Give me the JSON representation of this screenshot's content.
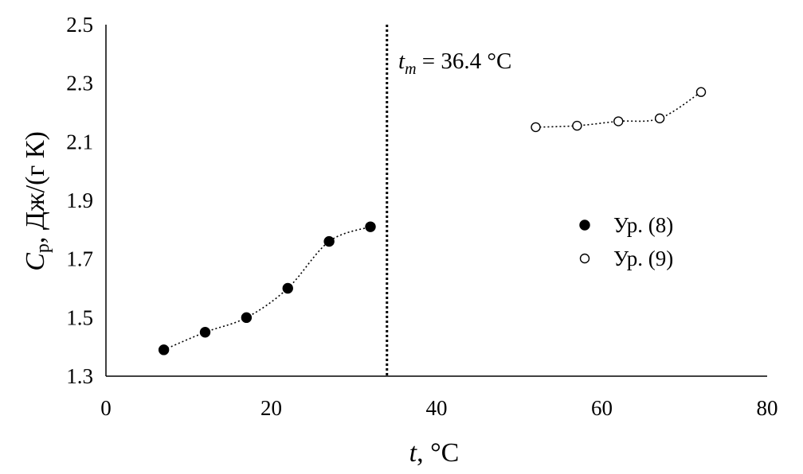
{
  "chart_data": {
    "type": "scatter",
    "title": "",
    "xlabel": {
      "var": "t",
      "rest": ", °C"
    },
    "ylabel": {
      "var": "C",
      "sub": "p",
      "rest": ", Дж/(г К)"
    },
    "xlim": [
      0,
      80
    ],
    "ylim": [
      1.3,
      2.5
    ],
    "x_ticks": [
      "0",
      "20",
      "40",
      "60",
      "80"
    ],
    "y_ticks": [
      "1.3",
      "1.5",
      "1.7",
      "1.9",
      "2.1",
      "2.3",
      "2.5"
    ],
    "grid": false,
    "legend_position": "center-right",
    "series": [
      {
        "name": "Ур. (8)",
        "marker": "filled-circle",
        "x": [
          7,
          12,
          17,
          22,
          27,
          32
        ],
        "y": [
          1.39,
          1.45,
          1.5,
          1.6,
          1.76,
          1.81
        ],
        "trend": "dotted"
      },
      {
        "name": "Ур. (9)",
        "marker": "open-circle",
        "x": [
          52,
          57,
          62,
          67,
          72
        ],
        "y": [
          2.15,
          2.155,
          2.17,
          2.18,
          2.27
        ],
        "trend": "dotted"
      }
    ],
    "vline": {
      "x": 34,
      "style": "dotted"
    },
    "annotation": {
      "var": "t",
      "sub": "m",
      "rest": " = 36.4 °C"
    }
  }
}
